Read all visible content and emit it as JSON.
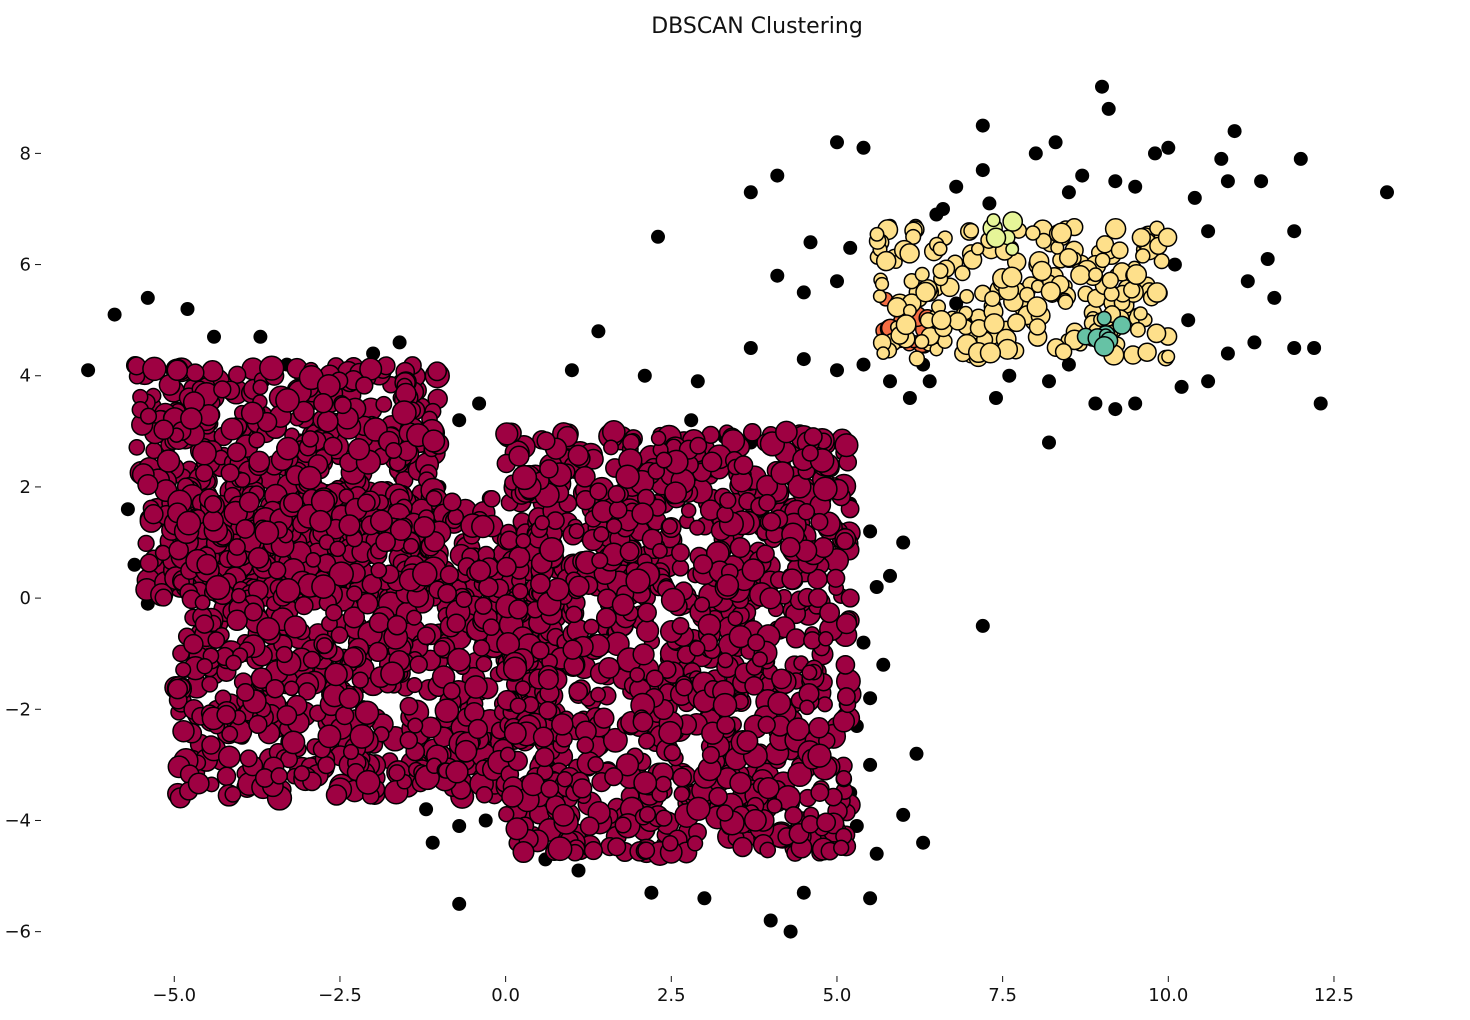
{
  "chart_data": {
    "type": "scatter",
    "title": "DBSCAN Clustering",
    "xlabel": "",
    "ylabel": "",
    "xlim": [
      -6.8,
      14.1
    ],
    "ylim": [
      -6.6,
      9.5
    ],
    "xticks": [
      -5.0,
      -2.5,
      0.0,
      2.5,
      5.0,
      7.5,
      10.0,
      12.5
    ],
    "yticks": [
      -6,
      -4,
      -2,
      0,
      2,
      4,
      6,
      8
    ],
    "xtick_labels": [
      "−5.0",
      "−2.5",
      "0.0",
      "2.5",
      "5.0",
      "7.5",
      "10.0",
      "12.5"
    ],
    "ytick_labels": [
      "−6",
      "−4",
      "−2",
      "0",
      "2",
      "4",
      "6",
      "8"
    ],
    "grid": false,
    "legend": "none",
    "series": [
      {
        "color": "#9e0142",
        "regions": [
          {
            "xrange": [
              -5.6,
              -1.0
            ],
            "yrange": [
              0.0,
              4.2
            ]
          },
          {
            "xrange": [
              -5.0,
              0.8
            ],
            "yrange": [
              -3.6,
              1.8
            ]
          },
          {
            "xrange": [
              0.0,
              5.2
            ],
            "yrange": [
              -4.6,
              3.0
            ]
          }
        ]
      },
      {
        "color": "#f46d43",
        "regions": [
          {
            "xrange": [
              5.7,
              6.4
            ],
            "yrange": [
              4.5,
              5.4
            ]
          }
        ]
      },
      {
        "color": "#fee08b",
        "regions": [
          {
            "xrange": [
              5.6,
              10.0
            ],
            "yrange": [
              4.3,
              6.7
            ]
          }
        ]
      },
      {
        "color": "#e6f598",
        "regions": [
          {
            "xrange": [
              7.3,
              7.7
            ],
            "yrange": [
              6.2,
              6.8
            ]
          }
        ]
      },
      {
        "color": "#66c2a5",
        "regions": [
          {
            "xrange": [
              8.7,
              9.3
            ],
            "yrange": [
              4.5,
              5.1
            ]
          }
        ]
      }
    ],
    "noise": {
      "color": "#000000",
      "points": [
        [
          -6.3,
          4.1
        ],
        [
          -5.9,
          5.1
        ],
        [
          -5.4,
          5.4
        ],
        [
          -4.8,
          5.2
        ],
        [
          -4.4,
          4.7
        ],
        [
          -3.7,
          4.7
        ],
        [
          -5.7,
          1.6
        ],
        [
          -5.6,
          0.6
        ],
        [
          -5.4,
          -0.1
        ],
        [
          -4.8,
          -1.3
        ],
        [
          -3.3,
          4.2
        ],
        [
          -2.0,
          4.4
        ],
        [
          -1.6,
          3.9
        ],
        [
          -1.6,
          4.6
        ],
        [
          -0.4,
          3.5
        ],
        [
          -0.7,
          3.2
        ],
        [
          -1.0,
          2.0
        ],
        [
          -0.7,
          1.6
        ],
        [
          -1.2,
          -3.8
        ],
        [
          -1.1,
          -4.4
        ],
        [
          -0.7,
          -4.1
        ],
        [
          -0.7,
          -5.5
        ],
        [
          -0.3,
          -4.0
        ],
        [
          0.6,
          -4.7
        ],
        [
          1.1,
          -4.5
        ],
        [
          1.1,
          -4.9
        ],
        [
          1.4,
          4.8
        ],
        [
          1.0,
          4.1
        ],
        [
          2.1,
          4.0
        ],
        [
          2.3,
          6.5
        ],
        [
          2.9,
          3.9
        ],
        [
          2.8,
          3.2
        ],
        [
          3.3,
          2.9
        ],
        [
          3.7,
          2.8
        ],
        [
          4.2,
          2.4
        ],
        [
          4.8,
          2.0
        ],
        [
          5.2,
          1.7
        ],
        [
          5.5,
          1.2
        ],
        [
          5.6,
          0.2
        ],
        [
          5.8,
          0.4
        ],
        [
          5.4,
          -0.8
        ],
        [
          5.7,
          -1.2
        ],
        [
          5.5,
          -1.8
        ],
        [
          5.3,
          -2.3
        ],
        [
          5.5,
          -3.0
        ],
        [
          5.2,
          -3.5
        ],
        [
          5.3,
          -4.1
        ],
        [
          5.6,
          -4.6
        ],
        [
          5.5,
          -5.4
        ],
        [
          4.5,
          -5.3
        ],
        [
          4.3,
          -6.0
        ],
        [
          4.0,
          -5.8
        ],
        [
          3.0,
          -5.4
        ],
        [
          2.2,
          -5.3
        ],
        [
          6.0,
          1.0
        ],
        [
          6.2,
          -2.8
        ],
        [
          6.0,
          -3.9
        ],
        [
          6.3,
          -4.4
        ],
        [
          7.2,
          -0.5
        ],
        [
          8.2,
          2.8
        ],
        [
          3.7,
          7.3
        ],
        [
          4.1,
          7.6
        ],
        [
          3.7,
          4.5
        ],
        [
          4.1,
          5.8
        ],
        [
          4.5,
          5.5
        ],
        [
          4.5,
          4.3
        ],
        [
          5.0,
          8.2
        ],
        [
          5.4,
          8.1
        ],
        [
          5.0,
          5.7
        ],
        [
          5.2,
          6.3
        ],
        [
          5.0,
          4.1
        ],
        [
          5.4,
          4.2
        ],
        [
          5.8,
          3.9
        ],
        [
          6.1,
          3.6
        ],
        [
          6.3,
          4.2
        ],
        [
          6.6,
          7.0
        ],
        [
          6.8,
          7.4
        ],
        [
          7.2,
          7.7
        ],
        [
          7.2,
          8.5
        ],
        [
          7.3,
          7.1
        ],
        [
          7.4,
          3.6
        ],
        [
          7.6,
          4.0
        ],
        [
          8.0,
          8.0
        ],
        [
          8.3,
          8.2
        ],
        [
          8.5,
          7.3
        ],
        [
          8.7,
          7.6
        ],
        [
          8.2,
          3.9
        ],
        [
          8.5,
          4.2
        ],
        [
          8.9,
          3.5
        ],
        [
          9.0,
          9.2
        ],
        [
          9.1,
          8.8
        ],
        [
          9.2,
          7.5
        ],
        [
          9.2,
          3.4
        ],
        [
          9.5,
          3.5
        ],
        [
          9.5,
          7.4
        ],
        [
          9.8,
          8.0
        ],
        [
          10.0,
          8.1
        ],
        [
          9.8,
          5.5
        ],
        [
          10.1,
          6.0
        ],
        [
          10.4,
          7.2
        ],
        [
          10.6,
          6.6
        ],
        [
          10.3,
          5.0
        ],
        [
          10.2,
          3.8
        ],
        [
          10.6,
          3.9
        ],
        [
          10.9,
          4.4
        ],
        [
          11.0,
          8.4
        ],
        [
          11.2,
          5.7
        ],
        [
          11.4,
          7.5
        ],
        [
          11.3,
          4.6
        ],
        [
          11.5,
          6.1
        ],
        [
          11.6,
          5.4
        ],
        [
          11.9,
          6.6
        ],
        [
          11.9,
          4.5
        ],
        [
          12.0,
          7.9
        ],
        [
          12.2,
          4.5
        ],
        [
          12.3,
          3.5
        ],
        [
          13.3,
          7.3
        ],
        [
          10.8,
          7.9
        ],
        [
          10.9,
          7.5
        ],
        [
          6.8,
          5.3
        ],
        [
          6.0,
          6.3
        ],
        [
          6.5,
          6.9
        ],
        [
          5.8,
          6.7
        ],
        [
          6.4,
          3.9
        ],
        [
          4.6,
          6.4
        ],
        [
          7.0,
          5.0
        ]
      ]
    }
  }
}
